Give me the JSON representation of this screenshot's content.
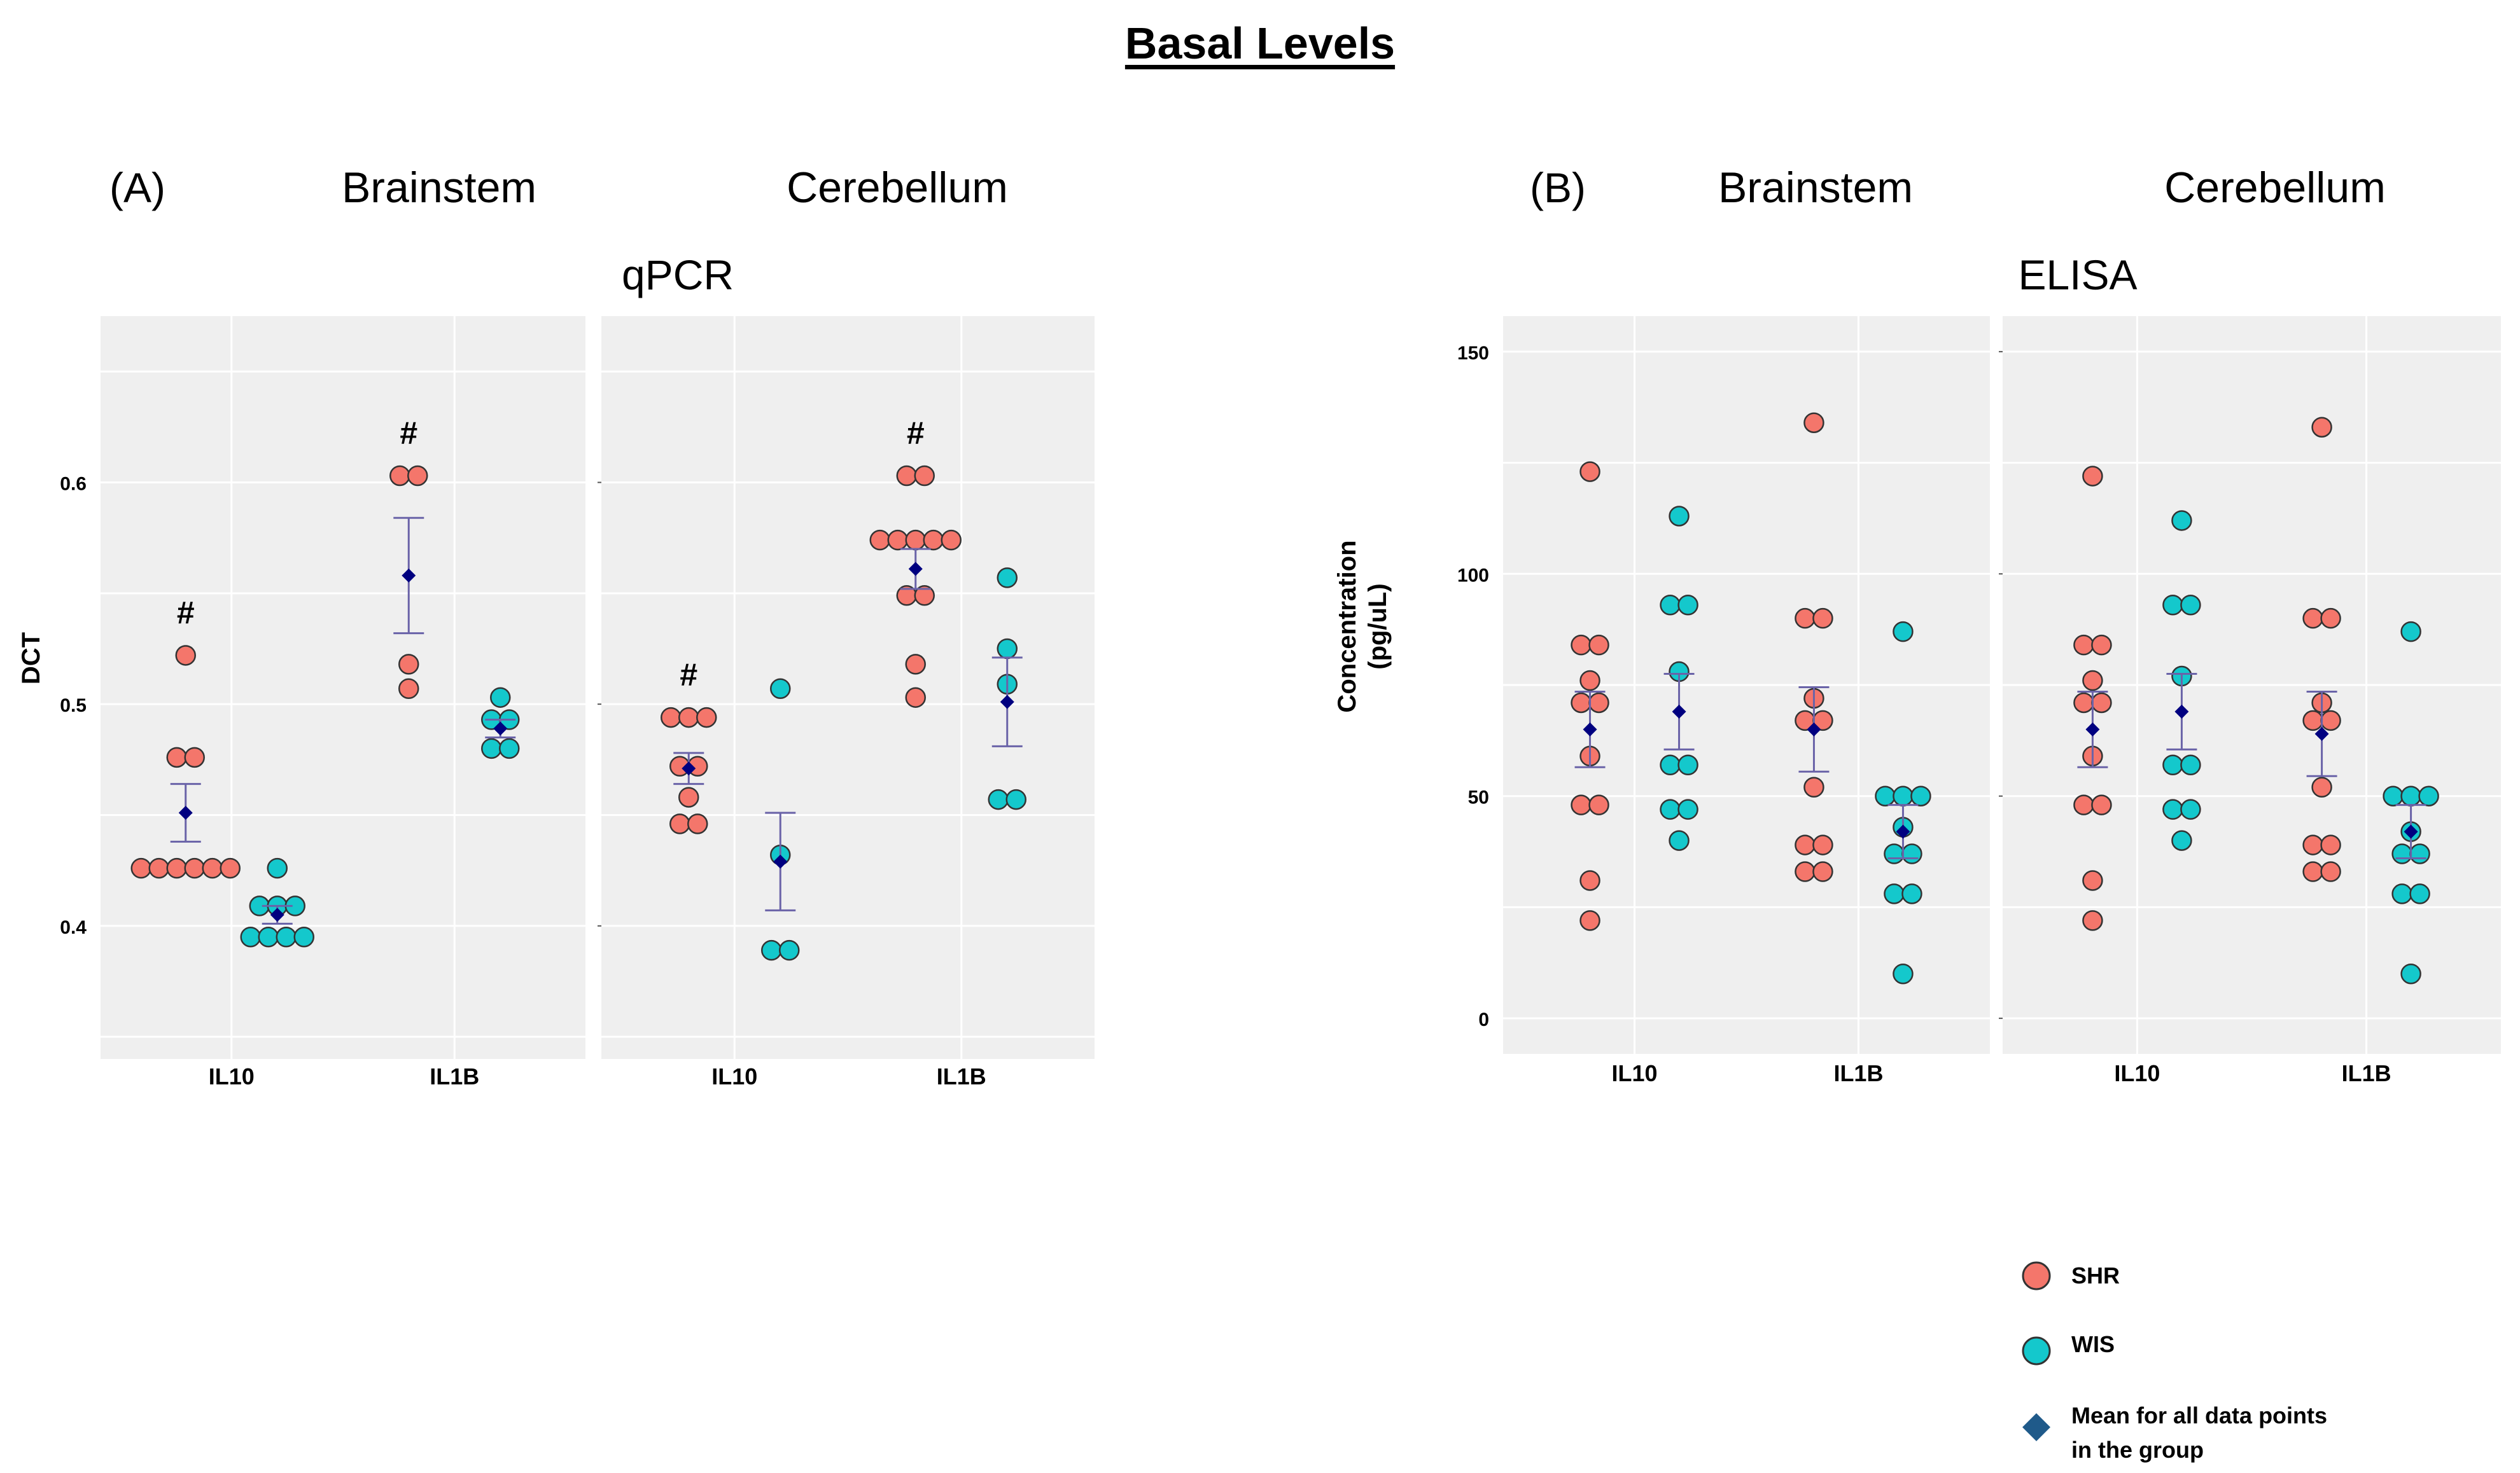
{
  "title": "Basal Levels",
  "colors": {
    "panel_bg": "#efefef",
    "grid": "#ffffff",
    "shr": "#f4766b",
    "wis": "#14c8cc",
    "mean": "#000080",
    "errorbar": "#6a63a8",
    "legend_mean": "#1f5a8a"
  },
  "legend": {
    "shr_label": "SHR",
    "wis_label": "WIS",
    "mean_label_line1": "Mean for all data points",
    "mean_label_line2": " in the group"
  },
  "chart_data": [
    {
      "type": "scatter",
      "panel_label": "(A)",
      "assay": "qPCR",
      "ylabel": "DCT",
      "xlabel": "",
      "ylim": [
        0.34,
        0.675
      ],
      "yticks": [
        "0.4",
        "0.5",
        "0.6"
      ],
      "categories": [
        "IL10",
        "IL1B"
      ],
      "grid": true,
      "facets": [
        {
          "name": "Brainstem",
          "groups": [
            {
              "category": "IL10",
              "series": "SHR",
              "values": [
                0.426,
                0.426,
                0.426,
                0.426,
                0.426,
                0.426,
                0.476,
                0.476,
                0.522
              ],
              "mean": 0.451,
              "se": 0.013,
              "significance": "#"
            },
            {
              "category": "IL10",
              "series": "WIS",
              "values": [
                0.395,
                0.395,
                0.395,
                0.395,
                0.409,
                0.409,
                0.409,
                0.426
              ],
              "mean": 0.405,
              "se": 0.004,
              "significance": ""
            },
            {
              "category": "IL1B",
              "series": "SHR",
              "values": [
                0.507,
                0.518,
                0.603,
                0.603
              ],
              "mean": 0.558,
              "se": 0.026,
              "significance": "#"
            },
            {
              "category": "IL1B",
              "series": "WIS",
              "values": [
                0.48,
                0.48,
                0.493,
                0.493,
                0.503
              ],
              "mean": 0.489,
              "se": 0.004,
              "significance": ""
            }
          ]
        },
        {
          "name": "Cerebellum",
          "groups": [
            {
              "category": "IL10",
              "series": "SHR",
              "values": [
                0.446,
                0.446,
                0.458,
                0.472,
                0.472,
                0.494,
                0.494,
                0.494
              ],
              "mean": 0.471,
              "se": 0.007,
              "significance": "#"
            },
            {
              "category": "IL10",
              "series": "WIS",
              "values": [
                0.389,
                0.389,
                0.432,
                0.507
              ],
              "mean": 0.429,
              "se": 0.022,
              "significance": ""
            },
            {
              "category": "IL1B",
              "series": "SHR",
              "values": [
                0.503,
                0.518,
                0.549,
                0.549,
                0.574,
                0.574,
                0.574,
                0.574,
                0.574,
                0.603,
                0.603
              ],
              "mean": 0.561,
              "se": 0.009,
              "significance": "#"
            },
            {
              "category": "IL1B",
              "series": "WIS",
              "values": [
                0.457,
                0.457,
                0.509,
                0.525,
                0.557
              ],
              "mean": 0.501,
              "se": 0.02,
              "significance": ""
            }
          ]
        }
      ]
    },
    {
      "type": "scatter",
      "panel_label": "(B)",
      "assay": "ELISA",
      "ylabel": "Concentration (pg/uL)",
      "ylabel_line1": "Concentration",
      "ylabel_line2": "(pg/uL)",
      "xlabel": "",
      "ylim": [
        -8,
        158
      ],
      "yticks": [
        "0",
        "50",
        "100",
        "150"
      ],
      "categories": [
        "IL10",
        "IL1B"
      ],
      "grid": true,
      "facets": [
        {
          "name": "Brainstem",
          "groups": [
            {
              "category": "IL10",
              "series": "SHR",
              "values": [
                22,
                31,
                48,
                48,
                59,
                71,
                71,
                76,
                84,
                84,
                123
              ],
              "mean": 65,
              "se": 8.5,
              "significance": ""
            },
            {
              "category": "IL10",
              "series": "WIS",
              "values": [
                40,
                47,
                47,
                57,
                57,
                78,
                93,
                93,
                113
              ],
              "mean": 69,
              "se": 8.5,
              "significance": ""
            },
            {
              "category": "IL1B",
              "series": "SHR",
              "values": [
                33,
                33,
                39,
                39,
                52,
                67,
                67,
                72,
                90,
                90,
                134
              ],
              "mean": 65,
              "se": 9.5,
              "significance": ""
            },
            {
              "category": "IL1B",
              "series": "WIS",
              "values": [
                10,
                28,
                28,
                37,
                37,
                43,
                50,
                50,
                50,
                87
              ],
              "mean": 42,
              "se": 6.0,
              "significance": ""
            }
          ]
        },
        {
          "name": "Cerebellum",
          "groups": [
            {
              "category": "IL10",
              "series": "SHR",
              "values": [
                22,
                31,
                48,
                48,
                59,
                71,
                71,
                76,
                84,
                84,
                122
              ],
              "mean": 65,
              "se": 8.5,
              "significance": ""
            },
            {
              "category": "IL10",
              "series": "WIS",
              "values": [
                40,
                47,
                47,
                57,
                57,
                77,
                93,
                93,
                112
              ],
              "mean": 69,
              "se": 8.5,
              "significance": ""
            },
            {
              "category": "IL1B",
              "series": "SHR",
              "values": [
                33,
                33,
                39,
                39,
                52,
                67,
                67,
                71,
                90,
                90,
                133
              ],
              "mean": 64,
              "se": 9.5,
              "significance": ""
            },
            {
              "category": "IL1B",
              "series": "WIS",
              "values": [
                10,
                28,
                28,
                37,
                37,
                42,
                50,
                50,
                50,
                87
              ],
              "mean": 42,
              "se": 6.0,
              "significance": ""
            }
          ]
        }
      ]
    }
  ]
}
